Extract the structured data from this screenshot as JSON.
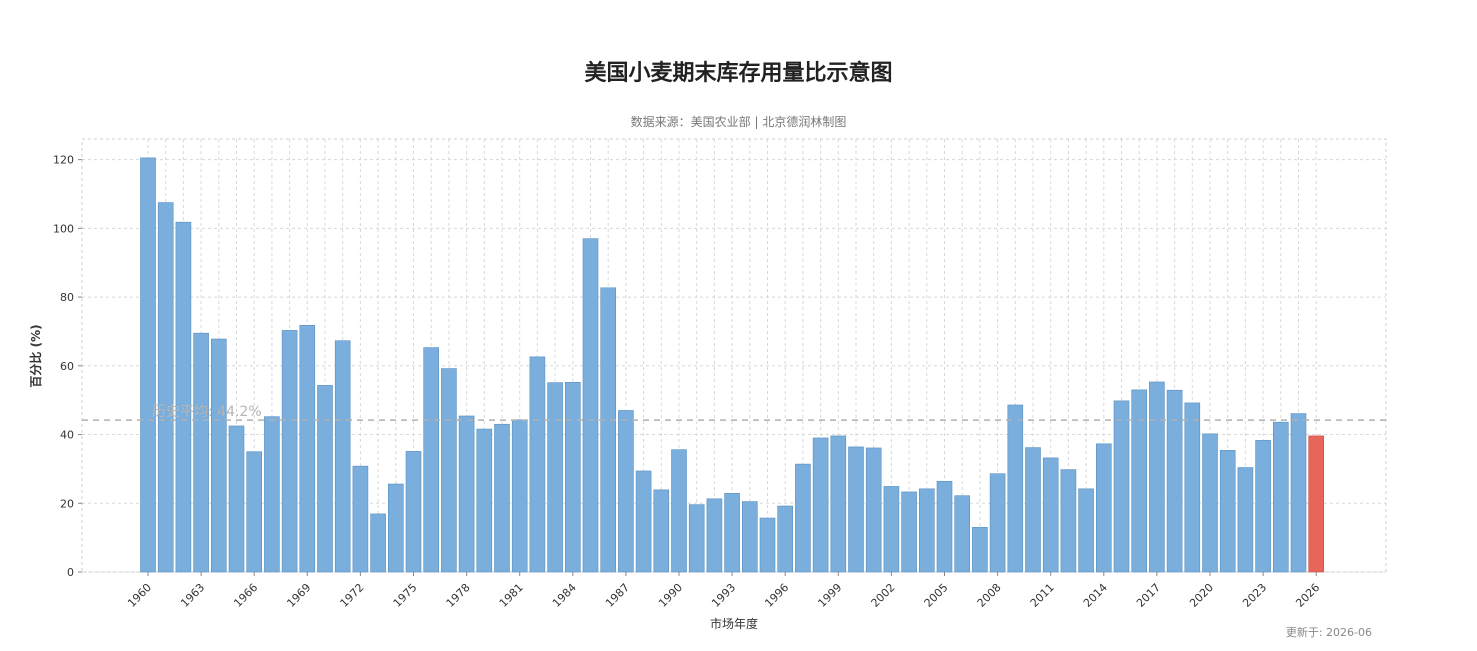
{
  "chart_data": {
    "type": "bar",
    "title": "美国小麦期末库存用量比示意图",
    "subtitle": "数据来源：美国农业部 | 北京德润林制图",
    "xlabel": "市场年度",
    "ylabel": "百分比 (%)",
    "ylim": [
      0,
      126
    ],
    "yticks": [
      0,
      20,
      40,
      60,
      80,
      100,
      120
    ],
    "xtick_labels": [
      "1960",
      "1963",
      "1966",
      "1969",
      "1972",
      "1975",
      "1978",
      "1981",
      "1984",
      "1987",
      "1990",
      "1993",
      "1996",
      "1999",
      "2002",
      "2005",
      "2008",
      "2011",
      "2014",
      "2017",
      "2020",
      "2023",
      "2026"
    ],
    "categories": [
      1960,
      1961,
      1962,
      1963,
      1964,
      1965,
      1966,
      1967,
      1968,
      1969,
      1970,
      1971,
      1972,
      1973,
      1974,
      1975,
      1976,
      1977,
      1978,
      1979,
      1980,
      1981,
      1982,
      1983,
      1984,
      1985,
      1986,
      1987,
      1988,
      1989,
      1990,
      1991,
      1992,
      1993,
      1994,
      1995,
      1996,
      1997,
      1998,
      1999,
      2000,
      2001,
      2002,
      2003,
      2004,
      2005,
      2006,
      2007,
      2008,
      2009,
      2010,
      2011,
      2012,
      2013,
      2014,
      2015,
      2016,
      2017,
      2018,
      2019,
      2020,
      2021,
      2022,
      2023,
      2024,
      2025,
      2026
    ],
    "values": [
      120.5,
      107.5,
      101.8,
      69.5,
      67.8,
      42.5,
      35.0,
      45.2,
      70.3,
      71.8,
      54.3,
      67.3,
      30.8,
      16.9,
      25.6,
      35.1,
      65.3,
      59.2,
      45.4,
      41.6,
      43.0,
      44.3,
      62.6,
      55.1,
      55.2,
      97.0,
      82.7,
      47.0,
      29.4,
      23.9,
      35.6,
      19.6,
      21.3,
      22.9,
      20.5,
      15.7,
      19.2,
      31.4,
      39.0,
      39.6,
      36.4,
      36.1,
      24.9,
      23.3,
      24.2,
      26.4,
      22.2,
      13.0,
      28.6,
      48.6,
      36.2,
      33.2,
      29.8,
      24.2,
      37.3,
      49.8,
      53.0,
      55.3,
      52.9,
      49.2,
      40.2,
      35.4,
      30.4,
      38.3,
      43.6,
      46.1,
      39.6
    ],
    "highlight_index": 66,
    "average": 44.2,
    "average_label": "历史平均: 44.2%",
    "grid": true,
    "colors": {
      "bar": "#7aaedc",
      "bar_edge": "#5a8fc0",
      "highlight": "#e8655a",
      "average_line": "#b0b0b0",
      "grid": "#d8d8d8"
    }
  },
  "footer": {
    "update_note": "更新于: 2026-06"
  }
}
